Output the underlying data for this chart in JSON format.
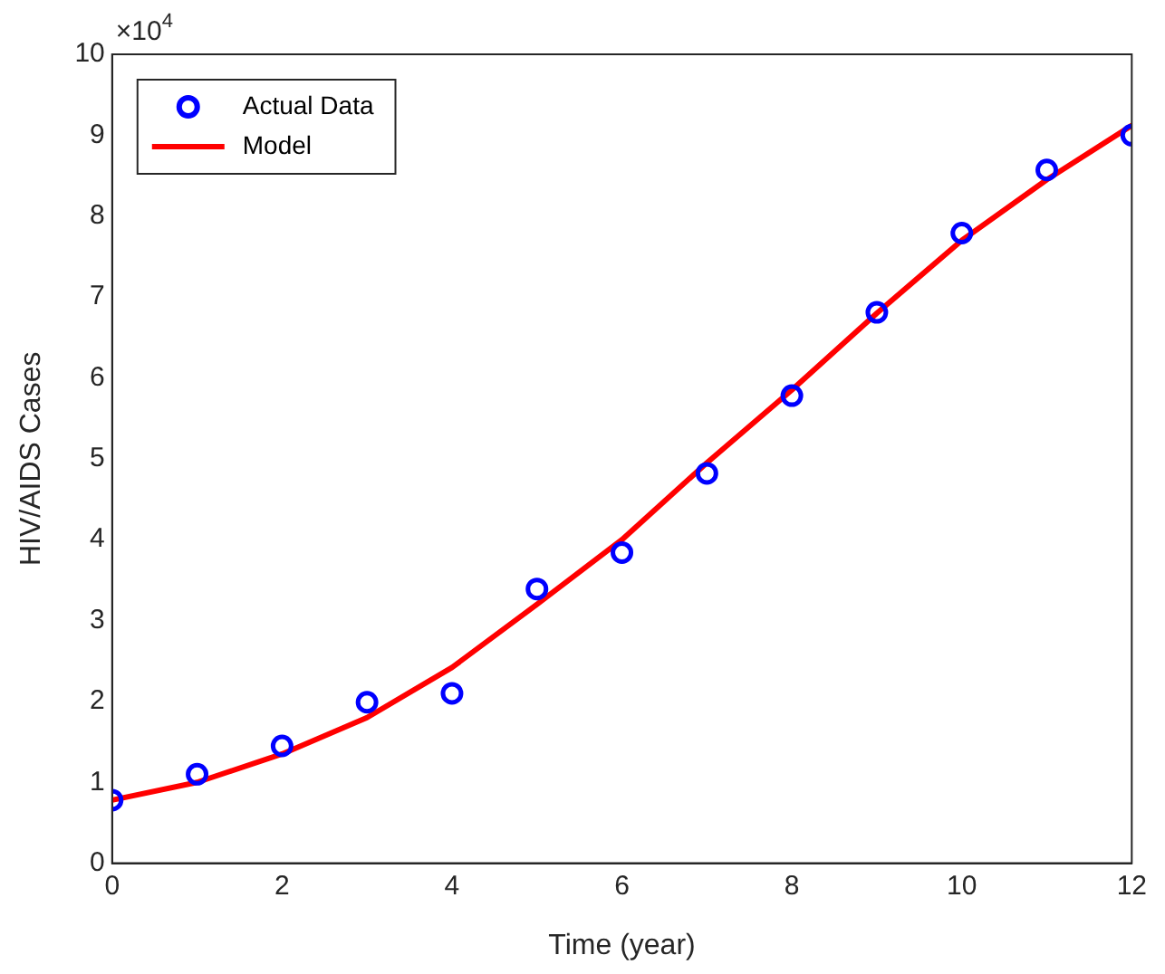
{
  "chart_data": {
    "type": "line",
    "xlabel": "Time (year)",
    "ylabel": "HIV/AIDS Cases",
    "annotations": [
      "×10$^{4}$"
    ],
    "series": [
      {
        "name": "Actual Data",
        "type": "scatter",
        "color": "#0000ff",
        "marker": "circle",
        "x": [
          0,
          1,
          2,
          3,
          4,
          5,
          6,
          7,
          8,
          9,
          10,
          11,
          12
        ],
        "values": [
          0.78,
          1.1,
          1.45,
          1.99,
          2.1,
          3.39,
          3.84,
          4.82,
          5.78,
          6.81,
          7.79,
          8.57,
          9.0
        ]
      },
      {
        "name": "Model",
        "type": "line",
        "color": "#ff0000",
        "line_style": "solid",
        "x": [
          0,
          1,
          2,
          3,
          4,
          5,
          6,
          7,
          8,
          9,
          10,
          11,
          12
        ],
        "values": [
          0.78,
          1.0,
          1.35,
          1.8,
          2.42,
          3.2,
          4.0,
          4.95,
          5.85,
          6.8,
          7.7,
          8.45,
          9.12
        ]
      }
    ],
    "xlim": [
      0,
      12
    ],
    "xticks": [
      0,
      2,
      4,
      6,
      8,
      10,
      12
    ],
    "ylim": [
      0,
      10
    ],
    "yticks": [
      0,
      1,
      2,
      3,
      4,
      5,
      6,
      7,
      8,
      9,
      10
    ],
    "grid": false,
    "legend": "top left"
  }
}
